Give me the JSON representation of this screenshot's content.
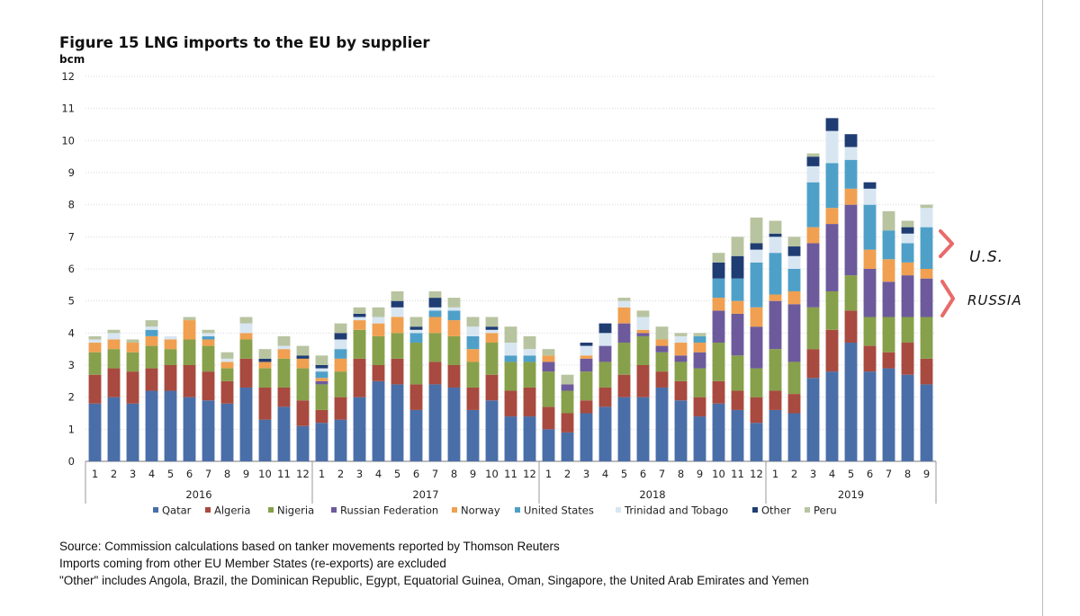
{
  "chart_data": {
    "type": "bar",
    "stacked": true,
    "title": "Figure 15 LNG imports to the EU by supplier",
    "ylabel": "bcm",
    "ylim": [
      0,
      12
    ],
    "yticks": [
      0,
      1,
      2,
      3,
      4,
      5,
      6,
      7,
      8,
      9,
      10,
      11,
      12
    ],
    "grid": true,
    "categories": [
      "1",
      "2",
      "3",
      "4",
      "5",
      "6",
      "7",
      "8",
      "9",
      "10",
      "11",
      "12",
      "1",
      "2",
      "3",
      "4",
      "5",
      "6",
      "7",
      "8",
      "9",
      "10",
      "11",
      "12",
      "1",
      "2",
      "3",
      "4",
      "5",
      "6",
      "7",
      "8",
      "9",
      "10",
      "11",
      "12",
      "1",
      "2",
      "3",
      "4",
      "5",
      "6",
      "7",
      "8",
      "9"
    ],
    "years": [
      {
        "label": "2016",
        "start": 0,
        "count": 12
      },
      {
        "label": "2017",
        "start": 12,
        "count": 12
      },
      {
        "label": "2018",
        "start": 24,
        "count": 12
      },
      {
        "label": "2019",
        "start": 36,
        "count": 9
      }
    ],
    "series": [
      {
        "name": "Qatar",
        "color": "#4a6fa8",
        "values": [
          1.8,
          2.0,
          1.8,
          2.2,
          2.2,
          2.0,
          1.9,
          1.8,
          2.3,
          1.3,
          1.7,
          1.1,
          1.2,
          1.3,
          2.0,
          2.5,
          2.4,
          1.6,
          2.4,
          2.3,
          1.6,
          1.9,
          1.4,
          1.4,
          1.0,
          0.9,
          1.5,
          1.7,
          2.0,
          2.0,
          2.3,
          1.9,
          1.4,
          1.8,
          1.6,
          1.2,
          1.6,
          1.5,
          2.6,
          2.8,
          3.7,
          2.8,
          2.9,
          2.7,
          2.4
        ]
      },
      {
        "name": "Algeria",
        "color": "#a84a3f",
        "values": [
          0.9,
          0.9,
          1.0,
          0.7,
          0.8,
          1.0,
          0.9,
          0.7,
          0.9,
          1.0,
          0.6,
          0.8,
          0.4,
          0.7,
          1.2,
          0.5,
          0.8,
          0.8,
          0.7,
          0.7,
          0.7,
          0.8,
          0.8,
          0.9,
          0.7,
          0.6,
          0.4,
          0.6,
          0.7,
          1.0,
          0.5,
          0.6,
          0.6,
          0.7,
          0.6,
          0.8,
          0.6,
          0.6,
          0.9,
          1.3,
          1.0,
          0.8,
          0.5,
          1.0,
          0.8
        ]
      },
      {
        "name": "Nigeria",
        "color": "#87a04b",
        "values": [
          0.7,
          0.6,
          0.6,
          0.7,
          0.5,
          0.8,
          0.8,
          0.4,
          0.6,
          0.6,
          0.9,
          1.0,
          0.8,
          0.8,
          0.9,
          0.9,
          0.8,
          1.3,
          0.9,
          0.9,
          0.8,
          1.0,
          0.9,
          0.8,
          1.1,
          0.7,
          0.9,
          0.8,
          1.0,
          0.9,
          0.6,
          0.6,
          0.9,
          1.2,
          1.1,
          0.9,
          1.3,
          1.0,
          1.3,
          1.2,
          1.1,
          0.9,
          1.1,
          0.8,
          1.3
        ]
      },
      {
        "name": "Russian Federation",
        "color": "#6d5a9c",
        "values": [
          0.0,
          0.0,
          0.0,
          0.0,
          0.0,
          0.0,
          0.0,
          0.0,
          0.0,
          0.0,
          0.0,
          0.0,
          0.1,
          0.0,
          0.0,
          0.0,
          0.0,
          0.0,
          0.0,
          0.0,
          0.0,
          0.0,
          0.0,
          0.0,
          0.3,
          0.2,
          0.4,
          0.5,
          0.6,
          0.1,
          0.2,
          0.2,
          0.5,
          1.0,
          1.3,
          1.3,
          1.5,
          1.8,
          2.0,
          2.1,
          2.2,
          1.5,
          1.1,
          1.3,
          1.2
        ]
      },
      {
        "name": "Norway",
        "color": "#f0a050",
        "values": [
          0.3,
          0.3,
          0.3,
          0.3,
          0.3,
          0.6,
          0.2,
          0.2,
          0.2,
          0.2,
          0.3,
          0.3,
          0.1,
          0.4,
          0.3,
          0.4,
          0.5,
          0.0,
          0.5,
          0.5,
          0.4,
          0.3,
          0.0,
          0.0,
          0.2,
          0.0,
          0.1,
          0.0,
          0.5,
          0.1,
          0.2,
          0.4,
          0.3,
          0.4,
          0.4,
          0.6,
          0.2,
          0.4,
          0.5,
          0.5,
          0.5,
          0.6,
          0.7,
          0.4,
          0.3
        ]
      },
      {
        "name": "United States",
        "color": "#4fa0c8",
        "values": [
          0.0,
          0.0,
          0.0,
          0.2,
          0.0,
          0.0,
          0.1,
          0.0,
          0.0,
          0.0,
          0.0,
          0.0,
          0.2,
          0.3,
          0.0,
          0.0,
          0.0,
          0.3,
          0.2,
          0.3,
          0.4,
          0.0,
          0.2,
          0.2,
          0.0,
          0.0,
          0.0,
          0.0,
          0.0,
          0.0,
          0.0,
          0.0,
          0.2,
          0.6,
          0.7,
          1.4,
          1.3,
          0.7,
          1.4,
          1.4,
          0.9,
          1.4,
          0.9,
          0.6,
          1.3
        ]
      },
      {
        "name": "Trinidad and Tobago",
        "color": "#d8e6f2",
        "values": [
          0.1,
          0.2,
          0.0,
          0.1,
          0.1,
          0.0,
          0.1,
          0.1,
          0.3,
          0.0,
          0.1,
          0.0,
          0.1,
          0.3,
          0.1,
          0.2,
          0.3,
          0.1,
          0.1,
          0.1,
          0.3,
          0.1,
          0.4,
          0.2,
          0.0,
          0.0,
          0.3,
          0.4,
          0.2,
          0.4,
          0.0,
          0.2,
          0.0,
          0.0,
          0.0,
          0.4,
          0.5,
          0.4,
          0.5,
          1.0,
          0.4,
          0.5,
          0.0,
          0.3,
          0.6
        ]
      },
      {
        "name": "Other",
        "color": "#1f3d73",
        "values": [
          0.0,
          0.0,
          0.0,
          0.0,
          0.0,
          0.0,
          0.0,
          0.0,
          0.0,
          0.1,
          0.0,
          0.1,
          0.1,
          0.2,
          0.1,
          0.0,
          0.2,
          0.1,
          0.3,
          0.0,
          0.0,
          0.1,
          0.0,
          0.0,
          0.0,
          0.0,
          0.1,
          0.3,
          0.0,
          0.0,
          0.0,
          0.0,
          0.0,
          0.5,
          0.7,
          0.2,
          0.1,
          0.3,
          0.3,
          0.4,
          0.4,
          0.2,
          0.0,
          0.2,
          0.0
        ]
      },
      {
        "name": "Peru",
        "color": "#b8c4a0",
        "values": [
          0.1,
          0.1,
          0.1,
          0.2,
          0.0,
          0.1,
          0.1,
          0.2,
          0.2,
          0.3,
          0.3,
          0.3,
          0.3,
          0.3,
          0.2,
          0.3,
          0.3,
          0.3,
          0.2,
          0.3,
          0.3,
          0.3,
          0.5,
          0.4,
          0.2,
          0.3,
          0.0,
          0.0,
          0.1,
          0.2,
          0.4,
          0.1,
          0.1,
          0.3,
          0.6,
          0.8,
          0.4,
          0.3,
          0.1,
          0.0,
          0.0,
          0.0,
          0.6,
          0.2,
          0.1
        ]
      }
    ]
  },
  "notes": [
    "Source: Commission calculations based on tanker movements reported by Thomson Reuters",
    "Imports coming from other EU Member States (re-exports) are excluded",
    "\"Other\" includes Angola, Brazil, the Dominican Republic, Egypt, Equatorial Guinea, Oman, Singapore, the United Arab Emirates and Yemen"
  ],
  "annotations": {
    "us": "U.S.",
    "russia": "RUSSIA",
    "bracket_color": "#e86a6a"
  }
}
